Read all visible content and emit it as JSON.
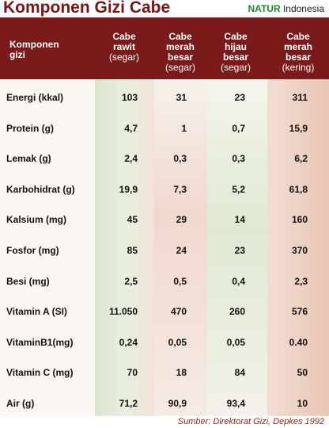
{
  "header": {
    "title": "Komponen Gizi Cabe",
    "brand": "NATUR",
    "brand_suffix": "Indonesia"
  },
  "table": {
    "columns": [
      [
        "Komponen",
        "gizi"
      ],
      [
        "Cabe",
        "rawit",
        "(segar)"
      ],
      [
        "Cabe",
        "merah",
        "besar",
        "(segar)"
      ],
      [
        "Cabe",
        "hijau",
        "besar",
        "(segar)"
      ],
      [
        "Cabe",
        "merah",
        "besar",
        "(kering)"
      ]
    ],
    "rows": [
      [
        "Energi (kkal)",
        "103",
        "31",
        "23",
        "311"
      ],
      [
        "Protein (g)",
        "4,7",
        "1",
        "0,7",
        "15,9"
      ],
      [
        "Lemak (g)",
        "2,4",
        "0,3",
        "0,3",
        "6,2"
      ],
      [
        "Karbohidrat (g)",
        "19,9",
        "7,3",
        "5,2",
        "61,8"
      ],
      [
        "Kalsium (mg)",
        "45",
        "29",
        "14",
        "160"
      ],
      [
        "Fosfor (mg)",
        "85",
        "24",
        "23",
        "370"
      ],
      [
        "Besi (mg)",
        "2,5",
        "0,5",
        "0,4",
        "2,3"
      ],
      [
        "Vitamin A (SI)",
        "11.050",
        "470",
        "260",
        "576"
      ],
      [
        "VitaminB1(mg)",
        "0,24",
        "0,05",
        "0,05",
        "0.40"
      ],
      [
        "Vitamin C (mg)",
        "70",
        "18",
        "84",
        "50"
      ],
      [
        "Air (g)",
        "71,2",
        "90,9",
        "93,4",
        "10"
      ]
    ]
  },
  "footer": {
    "source": "Sumber: Direktorat Gizi, Depkes 1992"
  }
}
